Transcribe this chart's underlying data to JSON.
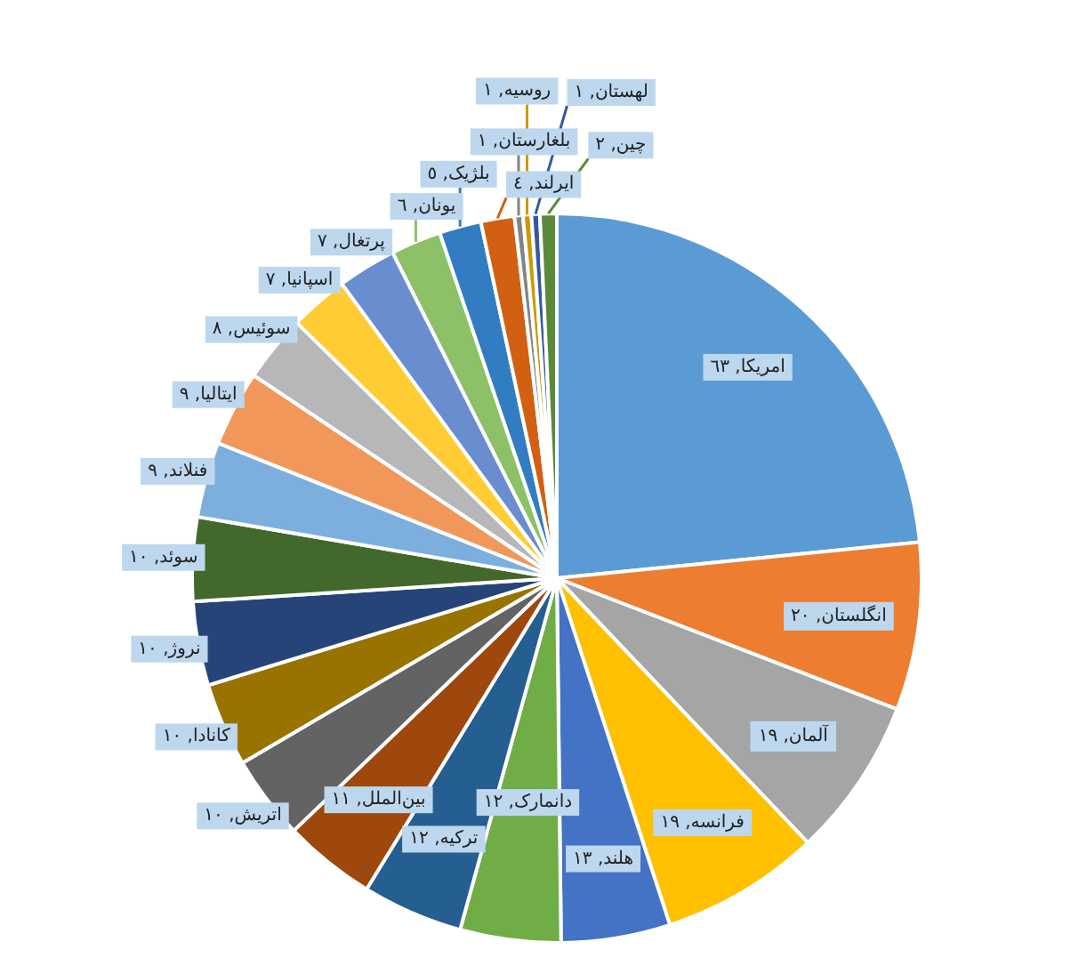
{
  "chart_data": {
    "type": "pie",
    "categories": [
      "امریکا",
      "انگلستان",
      "آلمان",
      "فرانسه",
      "هلند",
      "دانمارک",
      "ترکیه",
      "بین‌الملل",
      "اتریش",
      "کانادا",
      "نروژ",
      "سوئد",
      "فنلاند",
      "ایتالیا",
      "سوئیس",
      "اسپانیا",
      "پرتغال",
      "یونان",
      "بلژیک",
      "ایرلند",
      "بلغارستان",
      "روسیه",
      "لهستان",
      "چین"
    ],
    "values": [
      63,
      20,
      19,
      19,
      13,
      12,
      12,
      11,
      10,
      10,
      10,
      10,
      9,
      9,
      8,
      7,
      7,
      6,
      5,
      4,
      1,
      1,
      1,
      2
    ],
    "value_labels": [
      "٦٣",
      "٢٠",
      "١٩",
      "١٩",
      "١٣",
      "١٢",
      "١٢",
      "١١",
      "١٠",
      "١٠",
      "١٠",
      "١٠",
      "٩",
      "٩",
      "٨",
      "٧",
      "٧",
      "٦",
      "٥",
      "٤",
      "١",
      "١",
      "١",
      "٢"
    ],
    "colors": [
      "#5b9bd5",
      "#ed7d31",
      "#a5a5a5",
      "#ffc000",
      "#4472c4",
      "#70ad47",
      "#255e91",
      "#9e480e",
      "#636363",
      "#997300",
      "#264478",
      "#43682b",
      "#7cafdd",
      "#f1975a",
      "#b7b7b7",
      "#ffcd33",
      "#698ed0",
      "#8cc168",
      "#327dc2",
      "#d26012",
      "#848484",
      "#cc9a00",
      "#335aa1",
      "#5a8a39"
    ]
  }
}
